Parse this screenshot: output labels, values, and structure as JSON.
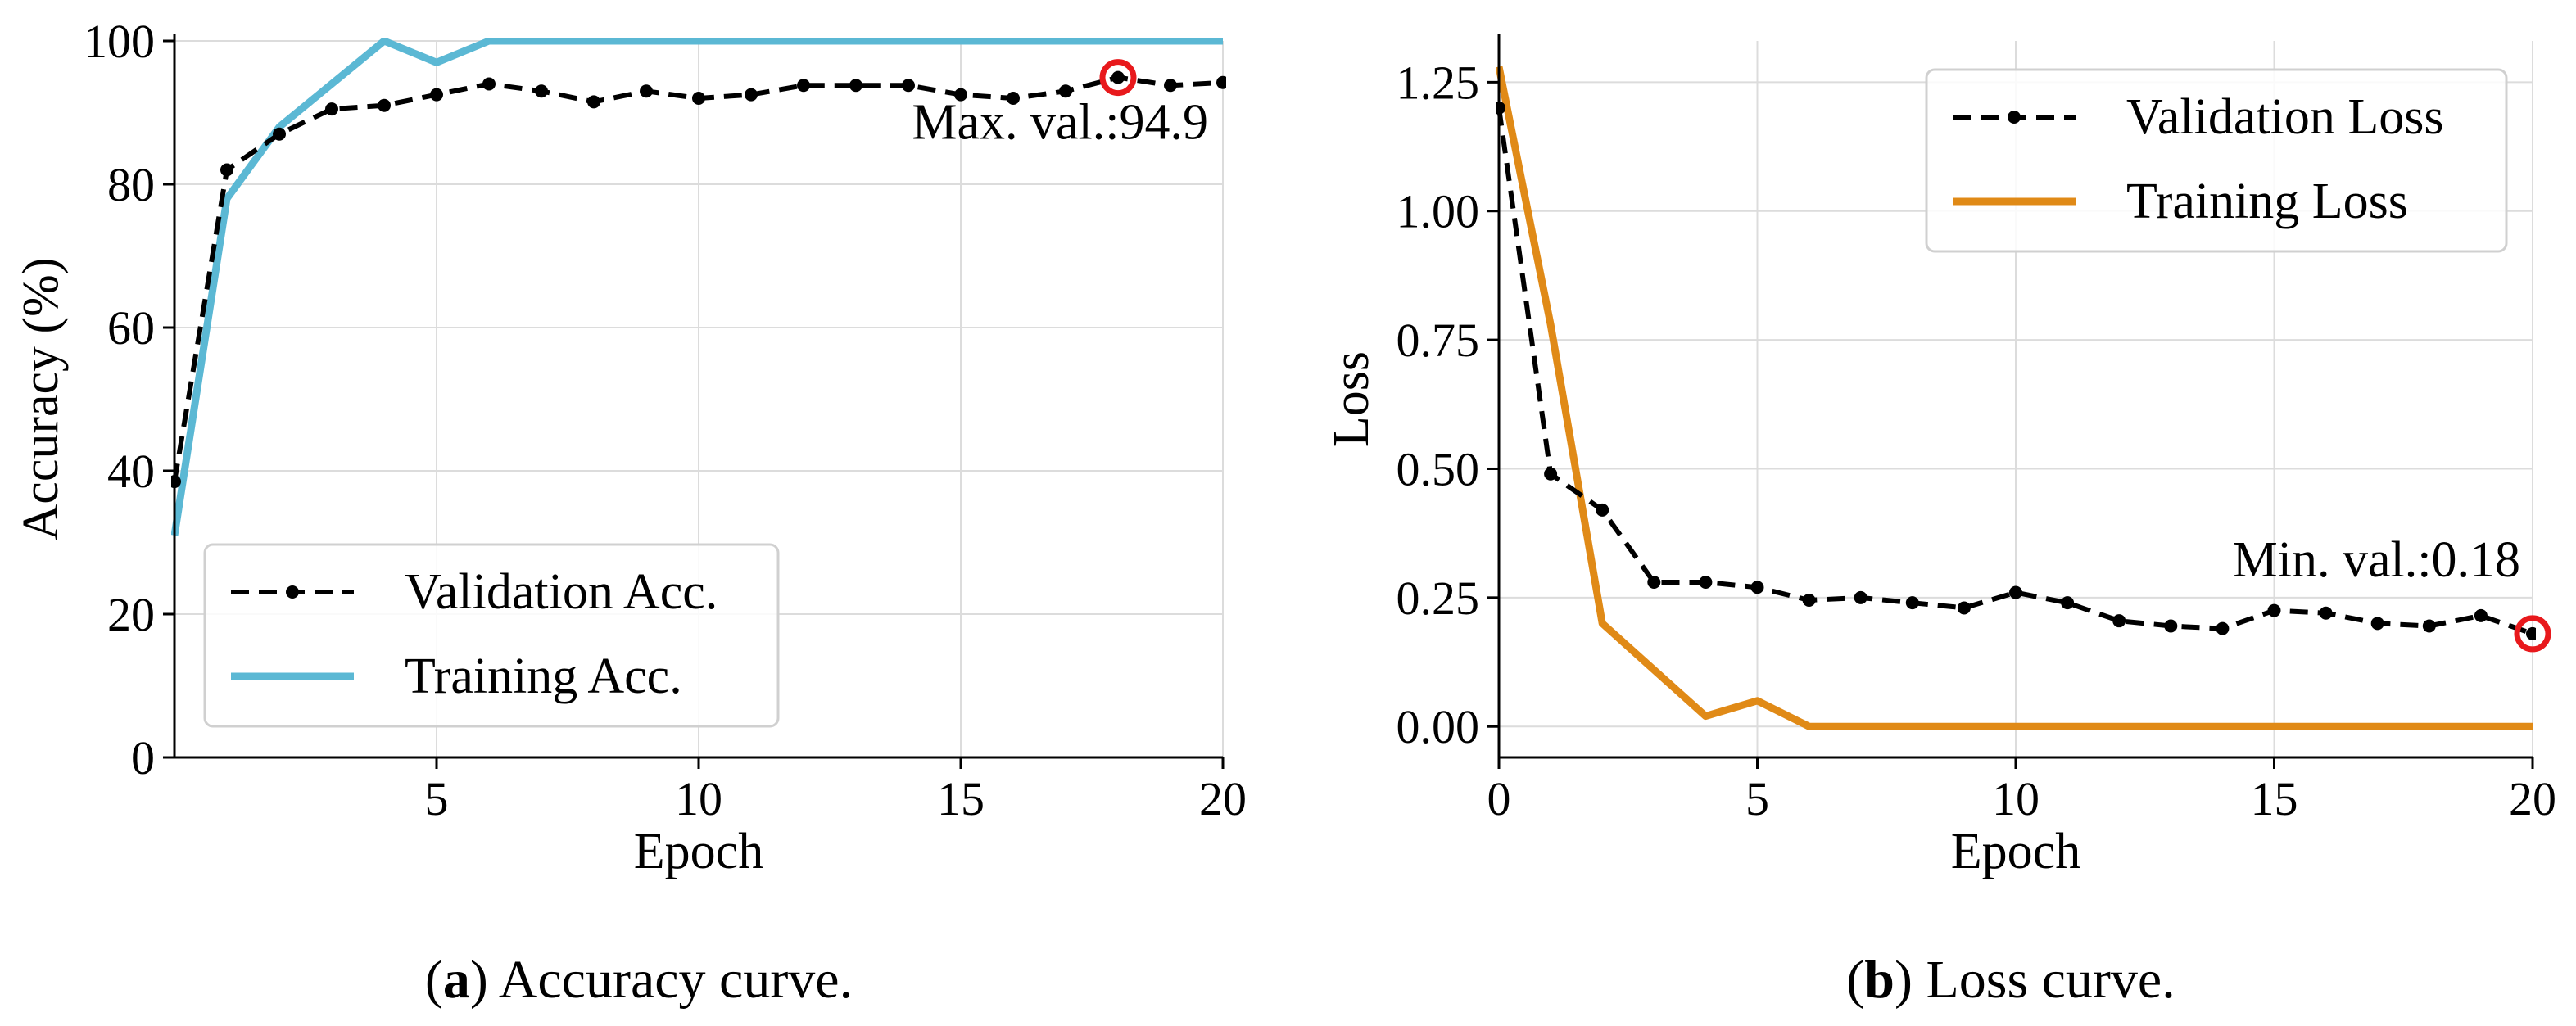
{
  "chart_data": [
    {
      "type": "line",
      "panel_label": "a",
      "caption": "Accuracy curve.",
      "xlabel": "Epoch",
      "ylabel": "Accuracy (%)",
      "xlim": [
        0,
        20
      ],
      "ylim": [
        0,
        100
      ],
      "xticks": [
        5,
        10,
        15,
        20
      ],
      "yticks": [
        0,
        20,
        40,
        60,
        80,
        100
      ],
      "grid": true,
      "legend_position": "bottom-left",
      "series": [
        {
          "name": "Validation Acc.",
          "color": "#000000",
          "style": "dashed-with-dots",
          "x": [
            0,
            1,
            2,
            3,
            4,
            5,
            6,
            7,
            8,
            9,
            10,
            11,
            12,
            13,
            14,
            15,
            16,
            17,
            18,
            19,
            20
          ],
          "values": [
            38.5,
            82,
            87,
            90.5,
            91,
            92.5,
            94,
            93,
            91.5,
            93,
            92,
            92.5,
            93.8,
            93.8,
            93.8,
            92.5,
            92,
            93,
            94.9,
            93.8,
            94.2
          ]
        },
        {
          "name": "Training Acc.",
          "color": "#5bb8d4",
          "style": "solid",
          "x": [
            0,
            1,
            2,
            3,
            4,
            5,
            6,
            7,
            8,
            9,
            10,
            11,
            12,
            13,
            14,
            15,
            16,
            17,
            18,
            19,
            20
          ],
          "values": [
            31,
            78,
            88,
            94,
            100,
            97,
            100,
            100,
            100,
            100,
            100,
            100,
            100,
            100,
            100,
            100,
            100,
            100,
            100,
            100,
            100
          ]
        }
      ],
      "annotation": {
        "text": "Max. val.:94.9",
        "x": 18,
        "y": 94.9,
        "marker_color": "#e8191c"
      }
    },
    {
      "type": "line",
      "panel_label": "b",
      "caption": "Loss curve.",
      "xlabel": "Epoch",
      "ylabel": "Loss",
      "xlim": [
        0,
        20
      ],
      "ylim": [
        -0.06,
        1.33
      ],
      "xticks": [
        0,
        5,
        10,
        15,
        20
      ],
      "yticks": [
        0.0,
        0.25,
        0.5,
        0.75,
        1.0,
        1.25
      ],
      "ytick_labels": [
        "0.00",
        "0.25",
        "0.50",
        "0.75",
        "1.00",
        "1.25"
      ],
      "grid": true,
      "legend_position": "top-right",
      "series": [
        {
          "name": "Validation Loss",
          "color": "#000000",
          "style": "dashed-with-dots",
          "x": [
            0,
            1,
            2,
            3,
            4,
            5,
            6,
            7,
            8,
            9,
            10,
            11,
            12,
            13,
            14,
            15,
            16,
            17,
            18,
            19,
            20
          ],
          "values": [
            1.2,
            0.49,
            0.42,
            0.28,
            0.28,
            0.27,
            0.245,
            0.25,
            0.24,
            0.23,
            0.26,
            0.24,
            0.205,
            0.195,
            0.19,
            0.225,
            0.22,
            0.2,
            0.195,
            0.215,
            0.18
          ]
        },
        {
          "name": "Training Loss",
          "color": "#e08a17",
          "style": "solid",
          "x": [
            0,
            1,
            2,
            3,
            4,
            5,
            6,
            7,
            8,
            9,
            10,
            11,
            12,
            13,
            14,
            15,
            16,
            17,
            18,
            19,
            20
          ],
          "values": [
            1.28,
            0.78,
            0.2,
            0.11,
            0.02,
            0.05,
            0.0,
            0.0,
            0.0,
            0.0,
            0.0,
            0.0,
            0.0,
            0.0,
            0.0,
            0.0,
            0.0,
            0.0,
            0.0,
            0.0,
            0.0
          ]
        }
      ],
      "annotation": {
        "text": "Min. val.:0.18",
        "x": 20,
        "y": 0.18,
        "marker_color": "#e8191c"
      }
    }
  ]
}
